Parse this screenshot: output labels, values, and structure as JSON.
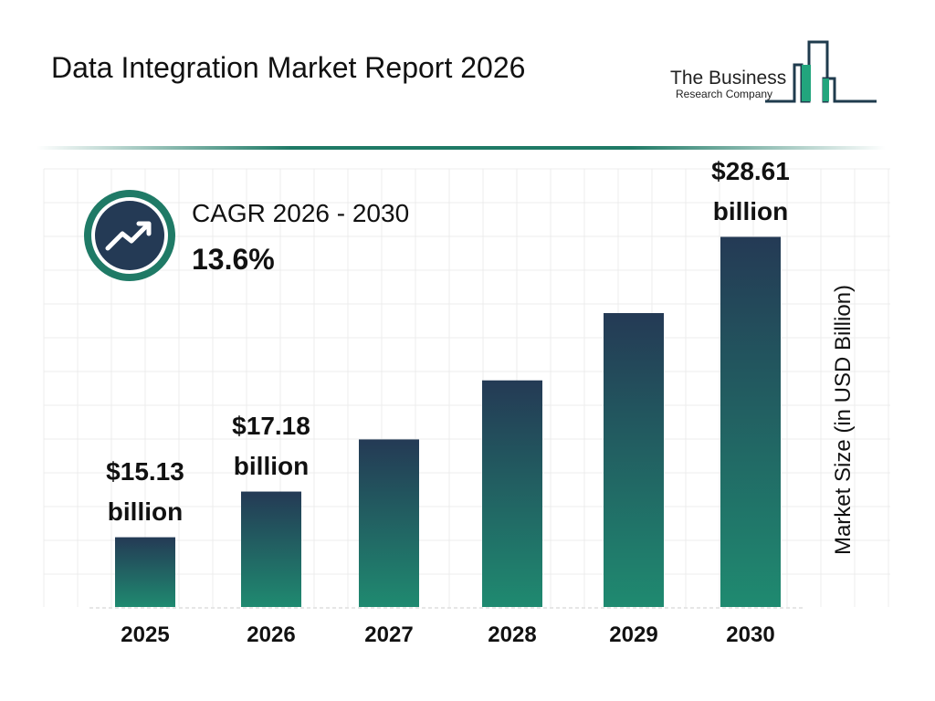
{
  "chart_data": {
    "type": "bar",
    "title": "Data Integration Market Report 2026",
    "categories": [
      "2025",
      "2026",
      "2027",
      "2028",
      "2029",
      "2030"
    ],
    "values": [
      15.13,
      17.18,
      19.52,
      22.17,
      25.19,
      28.61
    ],
    "data_labels": [
      "$15.13 billion",
      "$17.18 billion",
      "",
      "",
      "",
      "$28.61 billion"
    ],
    "ylabel": "Market Size (in USD Billion)",
    "ylim": [
      12,
      29
    ],
    "grid": true,
    "colors": {
      "bar_top": "#243a55",
      "bar_bottom": "#1f8a70",
      "accent": "#1f7a66"
    }
  },
  "cagr": {
    "label": "CAGR 2026 - 2030",
    "value": "13.6%",
    "icon": "trend-up-icon"
  },
  "logo": {
    "line1": "The Business",
    "line2": "Research Company"
  }
}
